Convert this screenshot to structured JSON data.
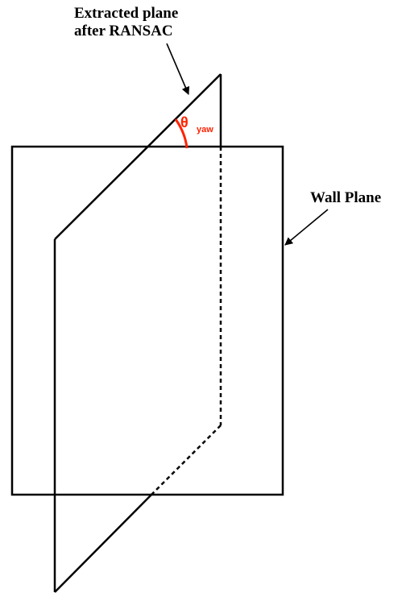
{
  "labels": {
    "extracted_line1": "Extracted plane",
    "extracted_line2": "after RANSAC",
    "wall_plane": "Wall Plane",
    "theta_symbol": "θ",
    "theta_subscript": "yaw"
  },
  "colors": {
    "line": "#000000",
    "angle": "#ff2200",
    "background": "#ffffff"
  }
}
